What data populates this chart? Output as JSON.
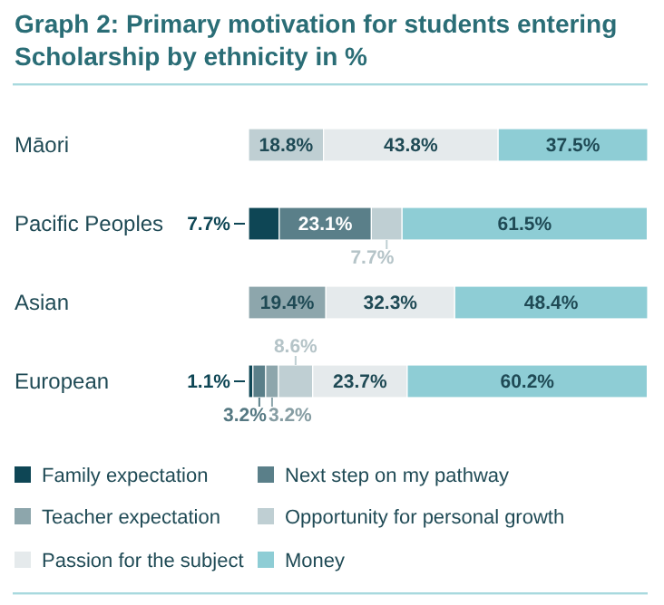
{
  "chart_data": {
    "type": "bar",
    "orientation": "horizontal",
    "stacked": true,
    "title": "Graph 2: Primary motivation for students entering Scholarship by ethnicity in %",
    "categories": [
      "Māori",
      "Pacific Peoples",
      "Asian",
      "European"
    ],
    "legend": "bottom",
    "series": [
      {
        "name": "Family expectation",
        "color": "#0e4655",
        "values": [
          null,
          7.7,
          null,
          1.1
        ],
        "value_labels": [
          null,
          "7.7%",
          null,
          "1.1%"
        ]
      },
      {
        "name": "Next step on my pathway",
        "color": "#5a7f89",
        "values": [
          null,
          23.1,
          null,
          3.2
        ],
        "value_labels": [
          null,
          "23.1%",
          null,
          "3.2%"
        ]
      },
      {
        "name": "Teacher expectation",
        "color": "#8da6ac",
        "values": [
          null,
          null,
          19.4,
          3.2
        ],
        "value_labels": [
          null,
          null,
          "19.4%",
          "3.2%"
        ]
      },
      {
        "name": "Opportunity for personal growth",
        "color": "#bfcfd3",
        "values": [
          18.8,
          7.7,
          null,
          8.6
        ],
        "value_labels": [
          "18.8%",
          "7.7%",
          null,
          "8.6%"
        ]
      },
      {
        "name": "Passion for the subject",
        "color": "#e5eaec",
        "values": [
          43.8,
          null,
          32.3,
          23.7
        ],
        "value_labels": [
          "43.8%",
          null,
          "32.3%",
          "23.7%"
        ]
      },
      {
        "name": "Money",
        "color": "#8ecdd5",
        "values": [
          37.5,
          61.5,
          48.4,
          60.2
        ],
        "value_labels": [
          "37.5%",
          "61.5%",
          "48.4%",
          "60.2%"
        ]
      }
    ]
  }
}
